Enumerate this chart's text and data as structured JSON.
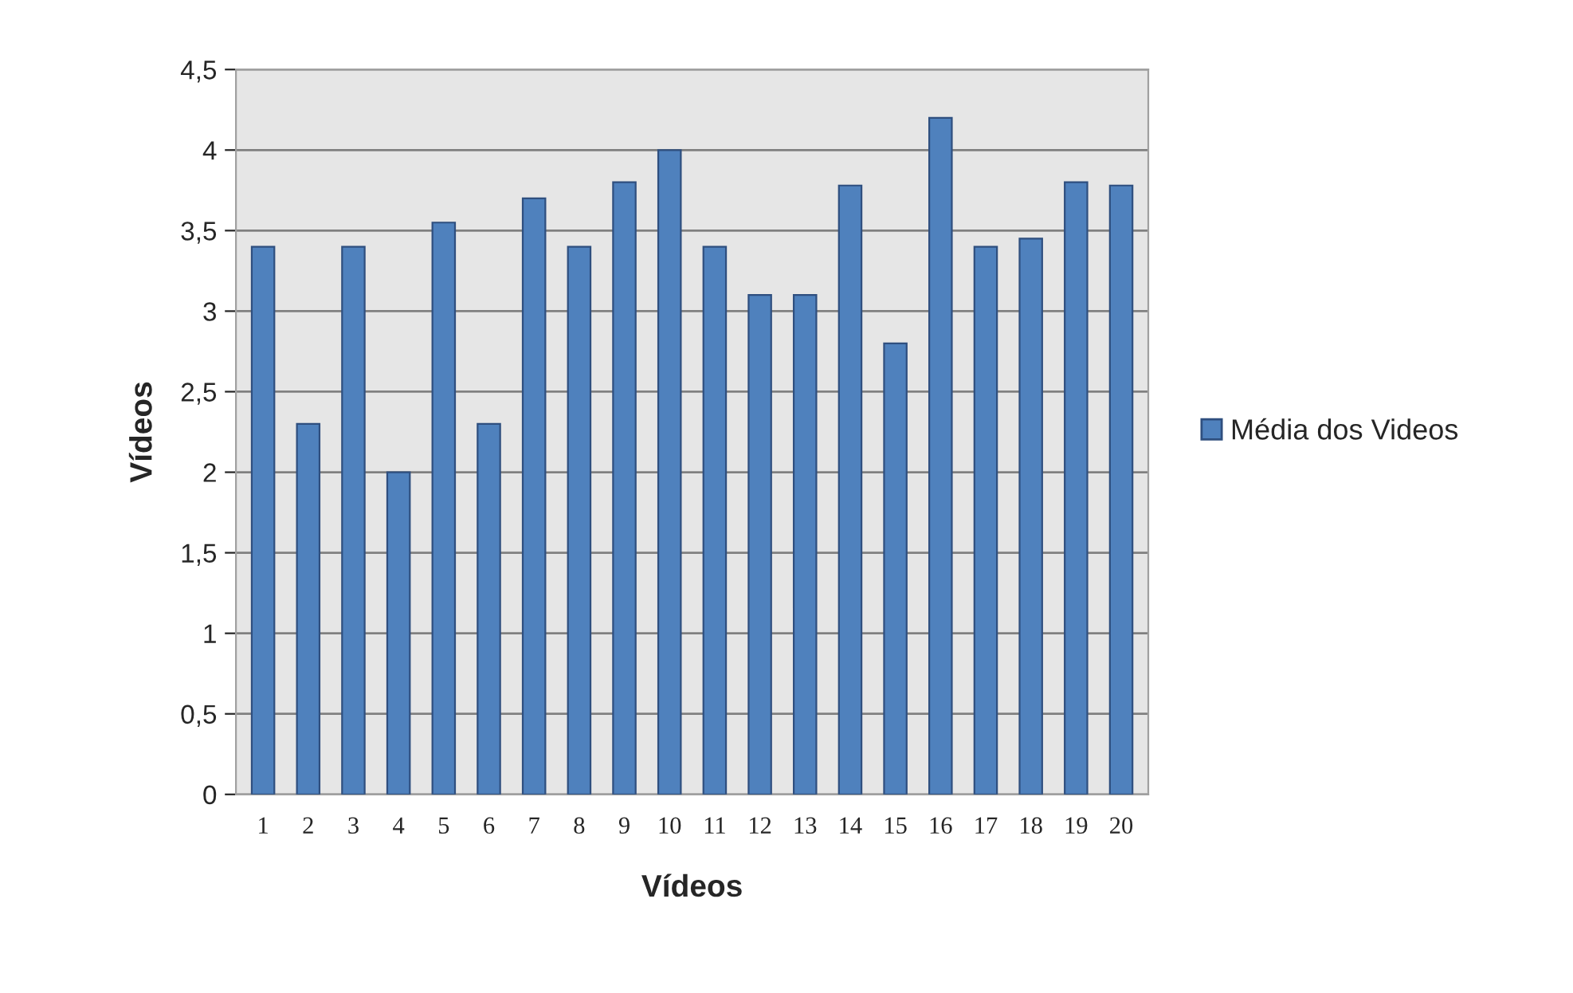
{
  "chart_data": {
    "type": "bar",
    "xlabel": "Vídeos",
    "ylabel": "Vídeos",
    "categories": [
      "1",
      "2",
      "3",
      "4",
      "5",
      "6",
      "7",
      "8",
      "9",
      "10",
      "11",
      "12",
      "13",
      "14",
      "15",
      "16",
      "17",
      "18",
      "19",
      "20"
    ],
    "series": [
      {
        "name": "Média dos Videos",
        "color": "#4f81bd",
        "values": [
          3.4,
          2.3,
          3.4,
          2.0,
          3.55,
          2.3,
          3.7,
          3.4,
          3.8,
          4.0,
          3.4,
          3.1,
          3.1,
          3.78,
          2.8,
          4.2,
          3.4,
          3.45,
          3.8,
          3.78
        ]
      }
    ],
    "ylim": [
      0,
      4.5
    ],
    "yticks": [
      {
        "value": 0,
        "label": "0"
      },
      {
        "value": 0.5,
        "label": "0,5"
      },
      {
        "value": 1,
        "label": "1"
      },
      {
        "value": 1.5,
        "label": "1,5"
      },
      {
        "value": 2,
        "label": "2"
      },
      {
        "value": 2.5,
        "label": "2,5"
      },
      {
        "value": 3,
        "label": "3"
      },
      {
        "value": 3.5,
        "label": "3,5"
      },
      {
        "value": 4,
        "label": "4"
      },
      {
        "value": 4.5,
        "label": "4,5"
      }
    ],
    "grid": "y",
    "legend": "right"
  }
}
